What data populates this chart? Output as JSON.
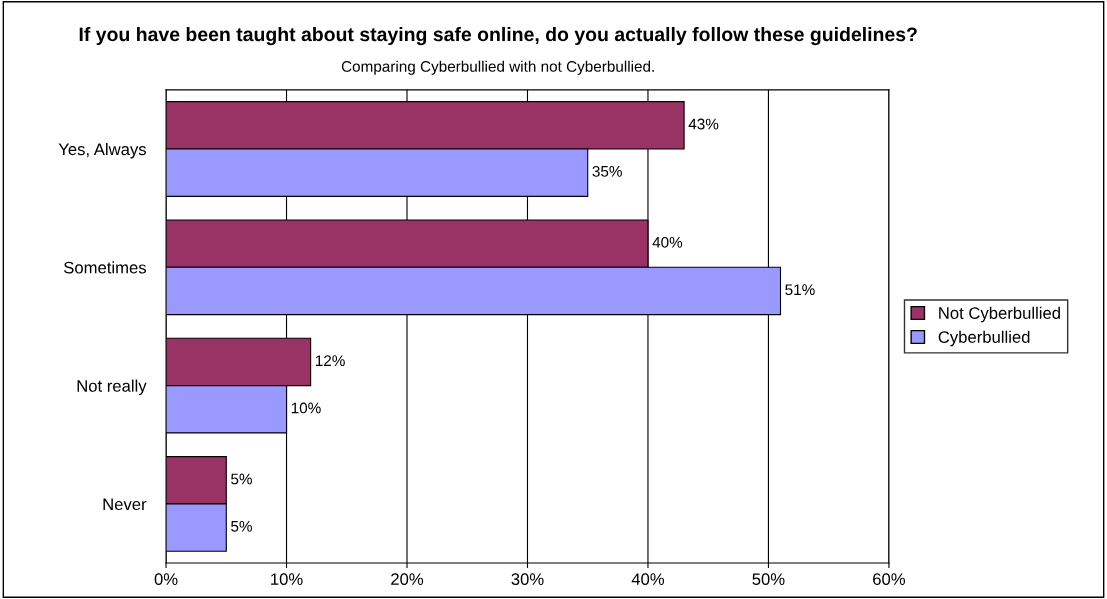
{
  "chart_data": {
    "type": "bar",
    "orientation": "horizontal",
    "title": "If you have been taught about staying safe online, do you actually follow these guidelines?",
    "subtitle": "Comparing Cyberbullied with not Cyberbullied.",
    "categories": [
      "Yes, Always",
      "Sometimes",
      "Not really",
      "Never"
    ],
    "series": [
      {
        "name": "Not Cyberbullied",
        "color": "#993366",
        "values": [
          43,
          40,
          12,
          5
        ],
        "value_labels": [
          "43%",
          "40%",
          "12%",
          "5%"
        ]
      },
      {
        "name": "Cyberbullied",
        "color": "#9999ff",
        "values": [
          35,
          51,
          10,
          5
        ],
        "value_labels": [
          "35%",
          "51%",
          "10%",
          "5%"
        ]
      }
    ],
    "xlim": [
      0,
      60
    ],
    "xticks": [
      {
        "value": 0,
        "label": "0%"
      },
      {
        "value": 10,
        "label": "10%"
      },
      {
        "value": 20,
        "label": "20%"
      },
      {
        "value": 30,
        "label": "30%"
      },
      {
        "value": 40,
        "label": "40%"
      },
      {
        "value": 50,
        "label": "50%"
      },
      {
        "value": 60,
        "label": "60%"
      }
    ],
    "grid": "x",
    "legend": "right"
  }
}
